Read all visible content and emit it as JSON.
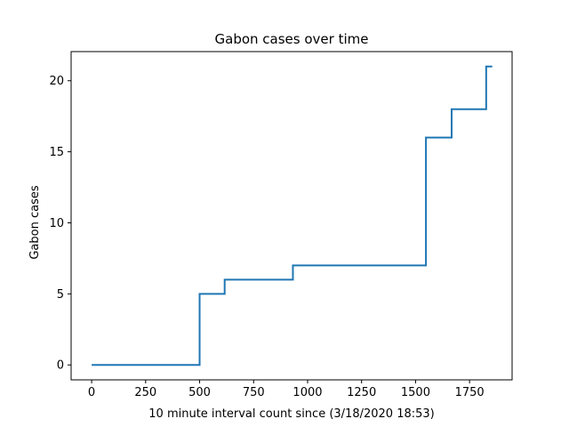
{
  "chart_data": {
    "type": "line",
    "title": "Gabon cases over time",
    "xlabel": "10 minute interval count since (3/18/2020 18:53)",
    "ylabel": "Gabon cases",
    "xlim": [
      -95,
      1947
    ],
    "ylim": [
      -1.05,
      22.05
    ],
    "xticks": [
      0,
      250,
      500,
      750,
      1000,
      1250,
      1500,
      1750
    ],
    "yticks": [
      0,
      5,
      10,
      15,
      20
    ],
    "grid": false,
    "line_color": "#1f77b4",
    "series": [
      {
        "x": [
          0,
          500,
          500,
          616,
          616,
          932,
          932,
          1548,
          1548,
          1667,
          1667,
          1827,
          1827,
          1855
        ],
        "y": [
          0,
          0,
          5,
          5,
          6,
          6,
          7,
          7,
          16,
          16,
          18,
          18,
          21,
          21
        ]
      }
    ]
  }
}
